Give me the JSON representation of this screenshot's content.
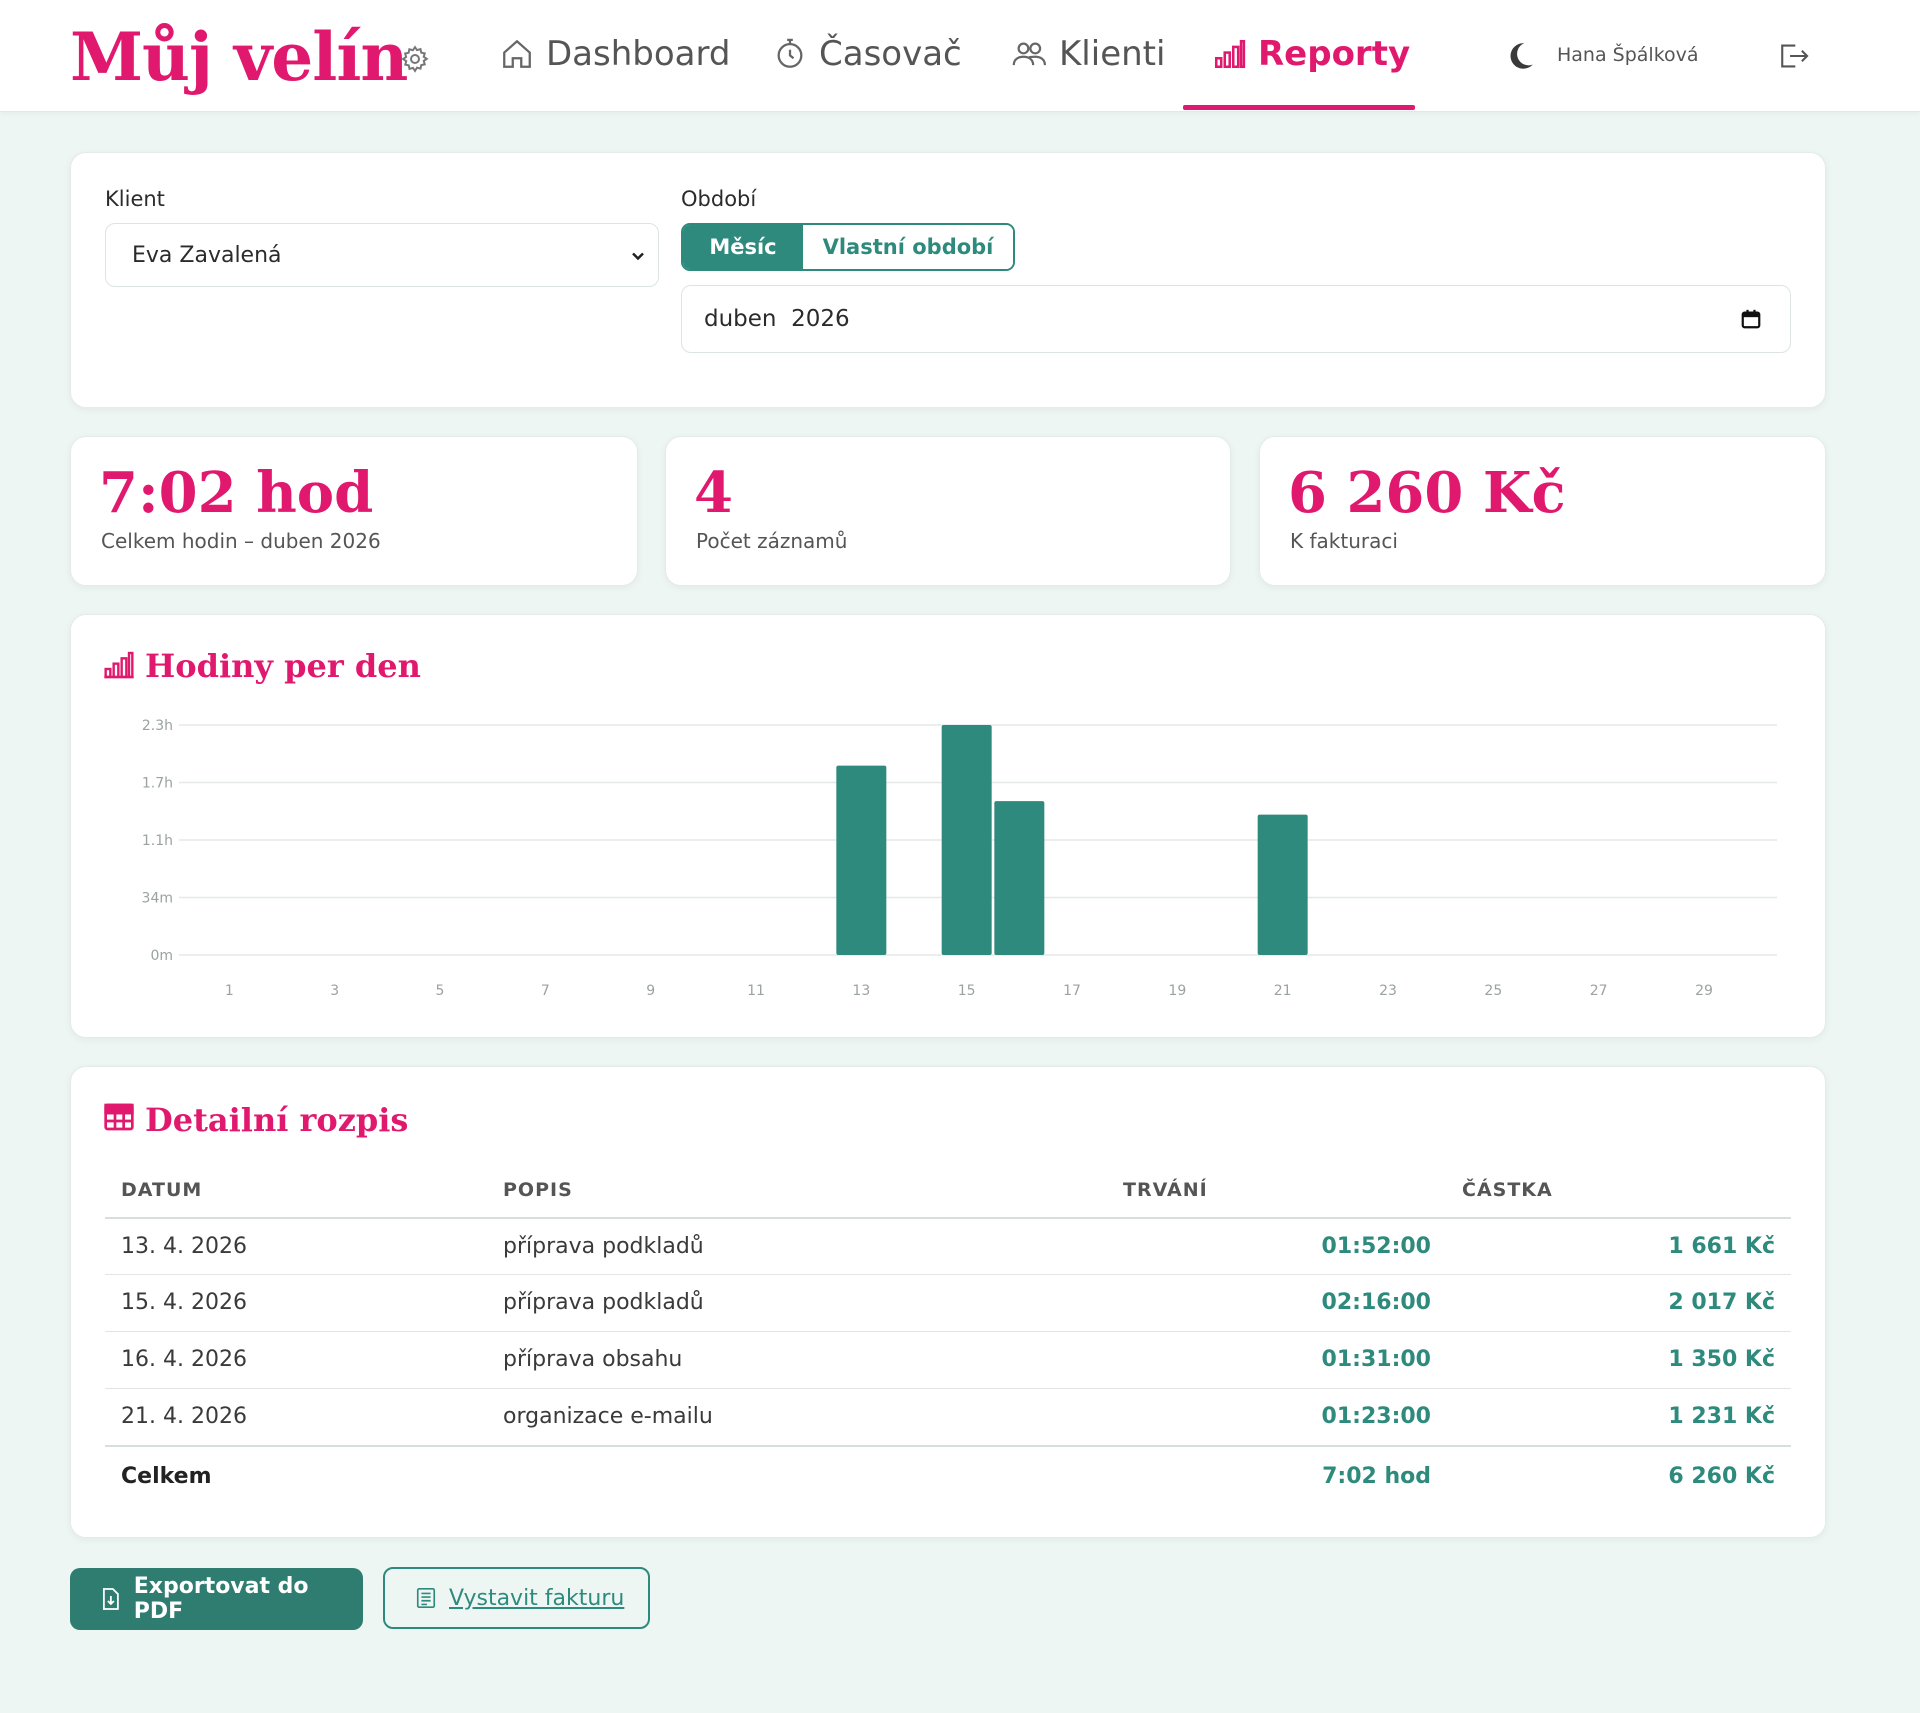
{
  "app": {
    "brand": "Můj velín",
    "nav": [
      {
        "label": "Dashboard",
        "icon": "home-icon",
        "active": false
      },
      {
        "label": "Časovač",
        "icon": "stopwatch-icon",
        "active": false
      },
      {
        "label": "Klienti",
        "icon": "users-icon",
        "active": false
      },
      {
        "label": "Reporty",
        "icon": "bar-chart-icon",
        "active": true
      }
    ],
    "user": "Hana Špálková",
    "accent": "#e0196f",
    "primary": "#2e8a7d"
  },
  "filters": {
    "client_label": "Klient",
    "client_value": "Eva Zavalená",
    "period_label": "Období",
    "period_modes": [
      "Měsíc",
      "Vlastní období"
    ],
    "period_mode_selected": "Měsíc",
    "month_value": "duben  2026"
  },
  "stats": [
    {
      "value": "7:02 hod",
      "label": "Celkem hodin – duben 2026"
    },
    {
      "value": "4",
      "label": "Počet záznamů"
    },
    {
      "value": "6 260 Kč",
      "label": "K fakturaci"
    }
  ],
  "chart_section": {
    "title": "Hodiny per den"
  },
  "chart_data": {
    "type": "bar",
    "title": "Hodiny per den",
    "categories": [
      "1",
      "2",
      "3",
      "4",
      "5",
      "6",
      "7",
      "8",
      "9",
      "10",
      "11",
      "12",
      "13",
      "14",
      "15",
      "16",
      "17",
      "18",
      "19",
      "20",
      "21",
      "22",
      "23",
      "24",
      "25",
      "26",
      "27",
      "28",
      "29",
      "30"
    ],
    "values_hours": [
      0,
      0,
      0,
      0,
      0,
      0,
      0,
      0,
      0,
      0,
      0,
      0,
      1.867,
      0,
      2.267,
      1.517,
      0,
      0,
      0,
      0,
      1.383,
      0,
      0,
      0,
      0,
      0,
      0,
      0,
      0,
      0
    ],
    "x_tick_labels": [
      "1",
      "3",
      "5",
      "7",
      "9",
      "11",
      "13",
      "15",
      "17",
      "19",
      "21",
      "23",
      "25",
      "27",
      "29"
    ],
    "y_tick_labels": [
      "0m",
      "34m",
      "1.1h",
      "1.7h",
      "2.3h"
    ],
    "y_tick_values": [
      0,
      0.567,
      1.133,
      1.7,
      2.267
    ],
    "ylim": [
      0,
      2.267
    ],
    "grid": true,
    "bar_color": "#2e8a7d"
  },
  "table_section": {
    "title": "Detailní rozpis",
    "headers": [
      "DATUM",
      "POPIS",
      "TRVÁNÍ",
      "ČÁSTKA"
    ],
    "rows": [
      {
        "date": "13. 4. 2026",
        "desc": "příprava podkladů",
        "duration": "01:52:00",
        "amount": "1 661 Kč"
      },
      {
        "date": "15. 4. 2026",
        "desc": "příprava podkladů",
        "duration": "02:16:00",
        "amount": "2 017 Kč"
      },
      {
        "date": "16. 4. 2026",
        "desc": "příprava obsahu",
        "duration": "01:31:00",
        "amount": "1 350 Kč"
      },
      {
        "date": "21. 4. 2026",
        "desc": "organizace e-mailu",
        "duration": "01:23:00",
        "amount": "1 231 Kč"
      }
    ],
    "total": {
      "label": "Celkem",
      "duration": "7:02 hod",
      "amount": "6 260 Kč"
    }
  },
  "actions": {
    "export_pdf": "Exportovat do PDF",
    "invoice": "Vystavit fakturu"
  }
}
